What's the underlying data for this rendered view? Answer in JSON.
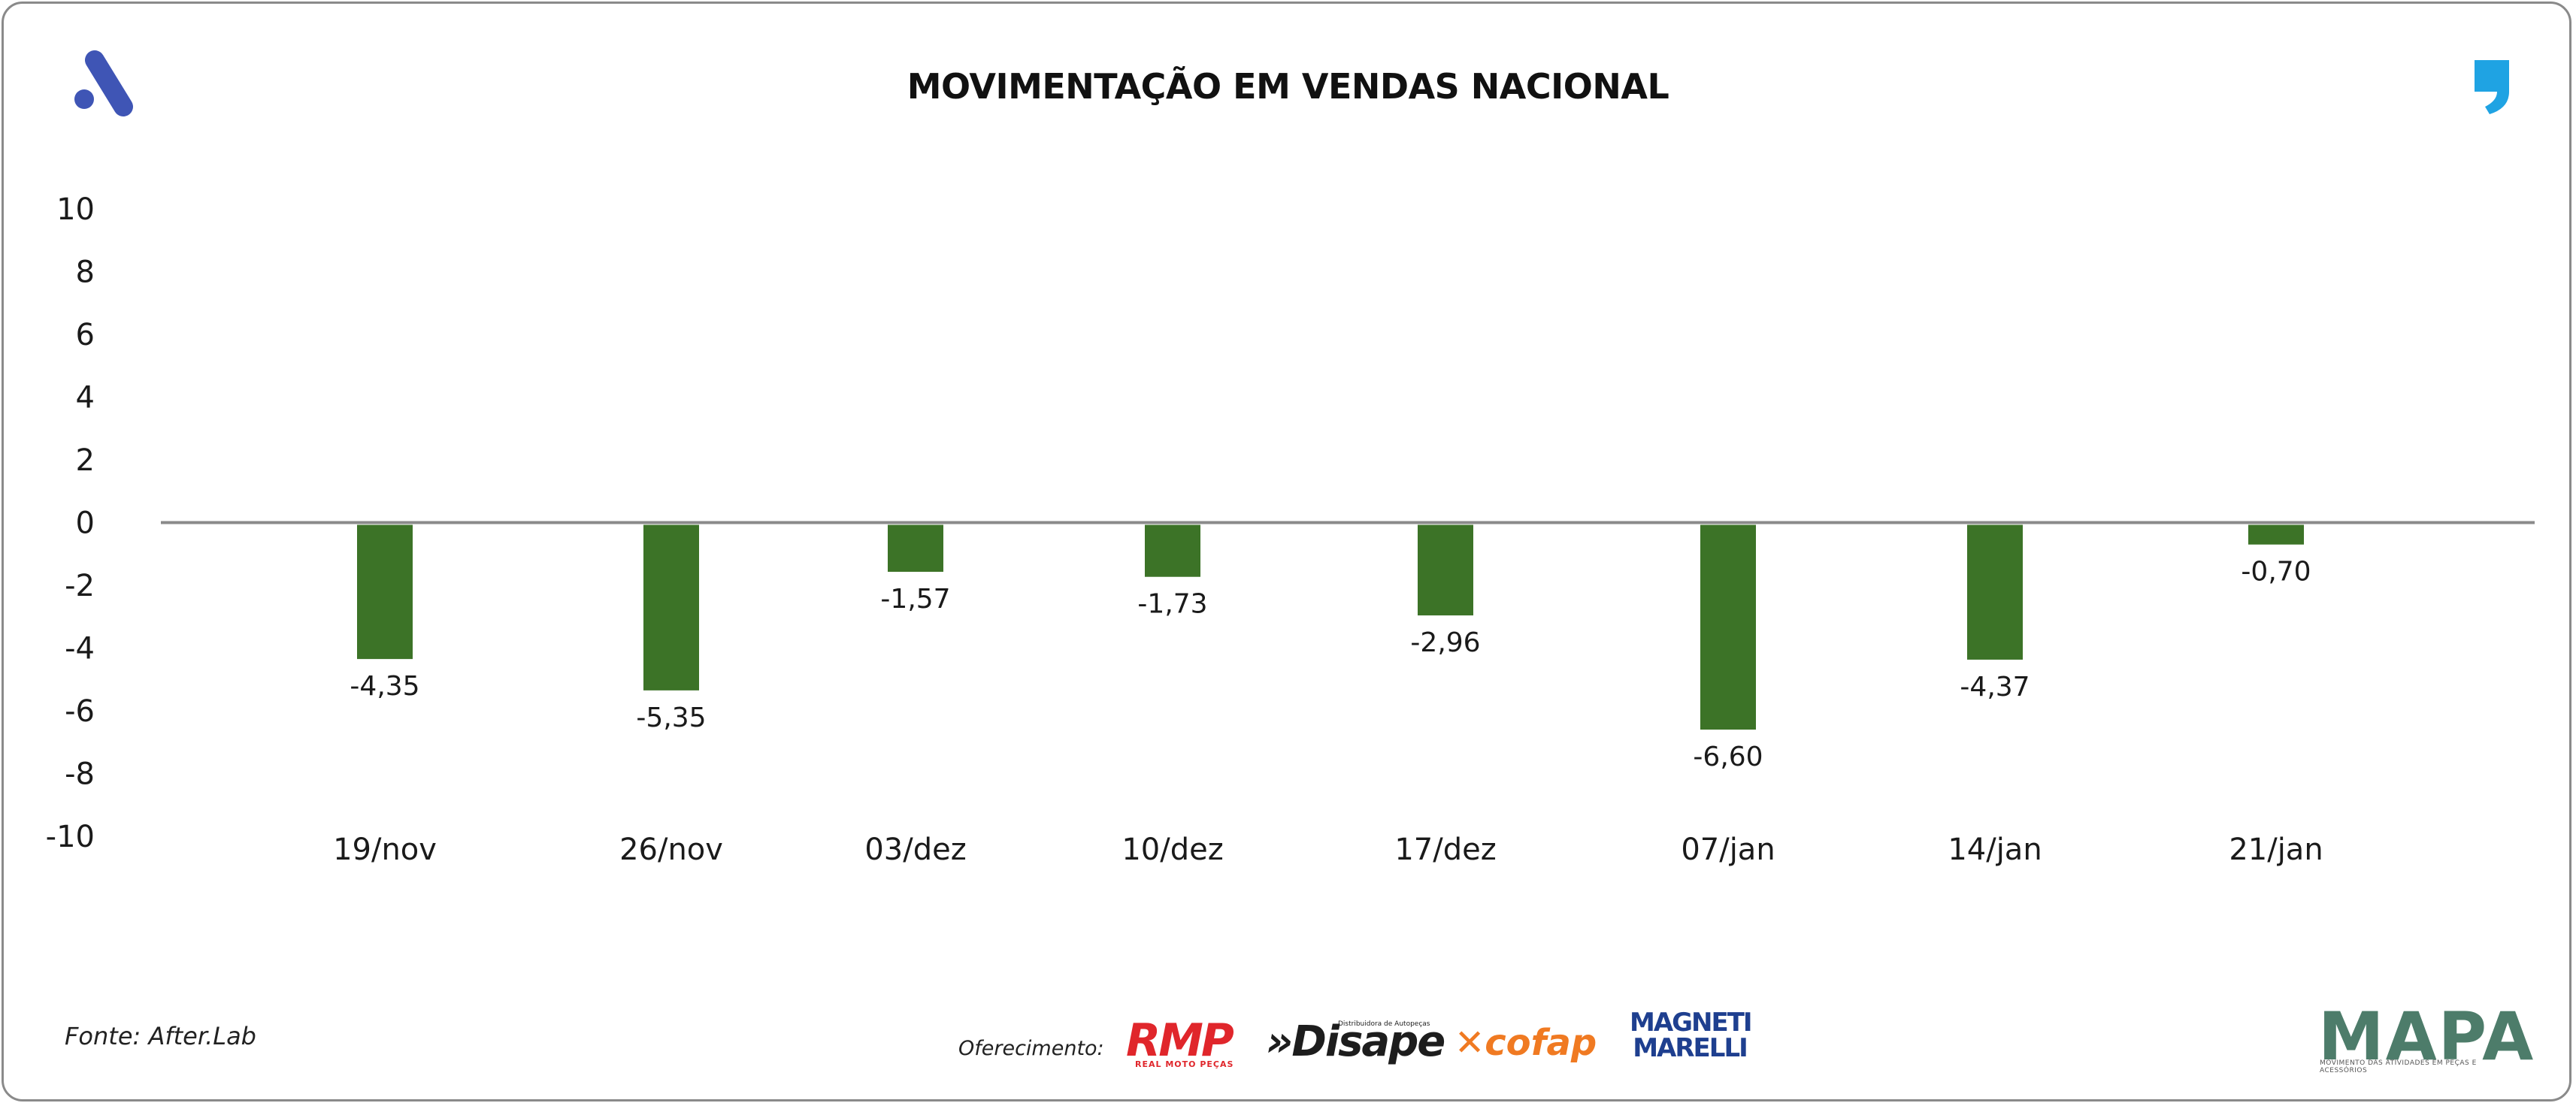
{
  "header": {
    "title": "MOVIMENTAÇÃO EM VENDAS NACIONAL"
  },
  "footer": {
    "source": "Fonte: After.Lab",
    "sponsor_label": "Oferecimento:",
    "sponsors": {
      "rmp": "RMP",
      "rmp_sub": "REAL MOTO PEÇAS",
      "disape": "»Disape",
      "disape_sub": "Distribuidora de Autopeças",
      "cofap": "cofap",
      "magneti_line1": "MAGNETI",
      "magneti_line2": "MARELLI"
    },
    "mapa": "MAPA",
    "mapa_sub": "MOVIMENTO DAS ATIVIDADES EM PEÇAS E ACESSÓRIOS"
  },
  "colors": {
    "bar": "#3c7327",
    "zero_line": "#8a8a8a",
    "accent_blue": "#3f55b5",
    "quote_blue": "#1fa3e3"
  },
  "chart_data": {
    "type": "bar",
    "title": "MOVIMENTAÇÃO EM VENDAS NACIONAL",
    "xlabel": "",
    "ylabel": "",
    "ylim": [
      -10,
      10
    ],
    "yticks": [
      10,
      8,
      6,
      4,
      2,
      0,
      -2,
      -4,
      -6,
      -8,
      -10
    ],
    "categories": [
      "19/nov",
      "26/nov",
      "03/dez",
      "10/dez",
      "17/dez",
      "07/jan",
      "14/jan",
      "21/jan"
    ],
    "values": [
      -4.35,
      -5.35,
      -1.57,
      -1.73,
      -2.96,
      -6.6,
      -4.37,
      -0.7
    ],
    "value_labels": [
      "-4,35",
      "-5,35",
      "-1,57",
      "-1,73",
      "-2,96",
      "-6,60",
      "-4,37",
      "-0,70"
    ],
    "grid": false,
    "legend": "none"
  }
}
